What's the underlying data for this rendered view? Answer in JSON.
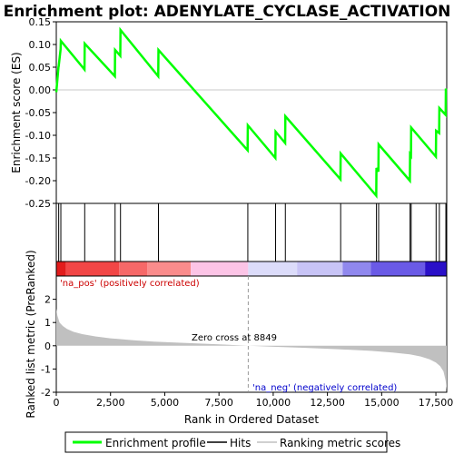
{
  "chart_data": {
    "type": "line",
    "title": "Enrichment plot: ADENYLATE_CYCLASE_ACTIVATION",
    "top_panel": {
      "ylabel": "Enrichment score (ES)",
      "ylim": [
        -0.25,
        0.15
      ],
      "yticks": [
        "0.15",
        "0.10",
        "0.05",
        "0.00",
        "-0.05",
        "-0.10",
        "-0.15",
        "-0.20",
        "-0.25"
      ],
      "ytick_values": [
        0.15,
        0.1,
        0.05,
        0.0,
        -0.05,
        -0.1,
        -0.15,
        -0.2,
        -0.25
      ],
      "line_color": "#00ff00",
      "series": [
        {
          "name": "Enrichment profile",
          "x": [
            0,
            100,
            110,
            200,
            210,
            1300,
            1310,
            2700,
            2710,
            2950,
            2960,
            4700,
            4710,
            8820,
            8830,
            10100,
            10110,
            10550,
            10560,
            13100,
            13110,
            14750,
            14760,
            14850,
            14860,
            16300,
            16310,
            16350,
            16360,
            17500,
            17510,
            17650,
            17660,
            17950,
            17960
          ],
          "y": [
            -0.005,
            0.05,
            0.052,
            0.09,
            0.108,
            0.045,
            0.102,
            0.03,
            0.088,
            0.075,
            0.132,
            0.03,
            0.088,
            -0.133,
            -0.078,
            -0.15,
            -0.092,
            -0.117,
            -0.058,
            -0.197,
            -0.14,
            -0.233,
            -0.172,
            -0.18,
            -0.12,
            -0.2,
            -0.142,
            -0.145,
            -0.083,
            -0.147,
            -0.09,
            -0.095,
            -0.04,
            -0.055,
            0.003
          ]
        }
      ]
    },
    "hits": [
      110,
      210,
      1310,
      2710,
      2960,
      4710,
      8830,
      10110,
      10560,
      13110,
      14760,
      14860,
      16310,
      16360,
      17510,
      17660,
      17960
    ],
    "color_bar": {
      "label_pos": "'na_pos' (positively correlated)",
      "label_neg": "'na_neg' (negatively correlated)",
      "pos_color": "#cc0000",
      "neg_color": "#0000cc",
      "segments": [
        {
          "start": 0,
          "end": 450,
          "color": "#e21c1c"
        },
        {
          "start": 450,
          "end": 2900,
          "color": "#f24646"
        },
        {
          "start": 2900,
          "end": 4200,
          "color": "#f66868"
        },
        {
          "start": 4200,
          "end": 6200,
          "color": "#fa8c8c"
        },
        {
          "start": 6200,
          "end": 8849,
          "color": "#fcc4e6"
        },
        {
          "start": 8849,
          "end": 11100,
          "color": "#dcdcfa"
        },
        {
          "start": 11100,
          "end": 13200,
          "color": "#c8c4f6"
        },
        {
          "start": 13200,
          "end": 14500,
          "color": "#9088ee"
        },
        {
          "start": 14500,
          "end": 17000,
          "color": "#6a5ae6"
        },
        {
          "start": 17000,
          "end": 18000,
          "color": "#2a10c8"
        }
      ]
    },
    "bottom_panel": {
      "ylabel": "Ranked list metric (PreRanked)",
      "ylim": [
        -2,
        3
      ],
      "yticks": [
        "2",
        "1",
        "0",
        "-1",
        "-2"
      ],
      "ytick_values": [
        2,
        1,
        0,
        -1,
        -2
      ],
      "fill_color": "#c0c0c0",
      "metric_x": [
        0,
        50,
        150,
        300,
        500,
        800,
        1200,
        1800,
        2500,
        3500,
        4500,
        6000,
        7500,
        8849,
        10000,
        11500,
        13000,
        14500,
        15500,
        16300,
        16800,
        17200,
        17500,
        17700,
        17850,
        17950,
        18000
      ],
      "metric_y": [
        1.6,
        1.3,
        1.0,
        0.85,
        0.72,
        0.6,
        0.5,
        0.4,
        0.32,
        0.24,
        0.18,
        0.12,
        0.06,
        0.0,
        -0.04,
        -0.09,
        -0.15,
        -0.22,
        -0.29,
        -0.37,
        -0.46,
        -0.58,
        -0.72,
        -0.88,
        -1.1,
        -1.5,
        -1.9
      ],
      "zero_cross_label": "Zero cross at 8849",
      "zero_cross": 8849
    },
    "xlabel": "Rank in Ordered Dataset",
    "xlim": [
      0,
      18000
    ],
    "xticks": [
      "0",
      "2,500",
      "5,000",
      "7,500",
      "10,000",
      "12,500",
      "15,000",
      "17,500"
    ],
    "xtick_values": [
      0,
      2500,
      5000,
      7500,
      10000,
      12500,
      15000,
      17500
    ],
    "legend": {
      "placement": "bottom",
      "entries": [
        "Enrichment profile",
        "Hits",
        "Ranking metric scores"
      ]
    }
  }
}
